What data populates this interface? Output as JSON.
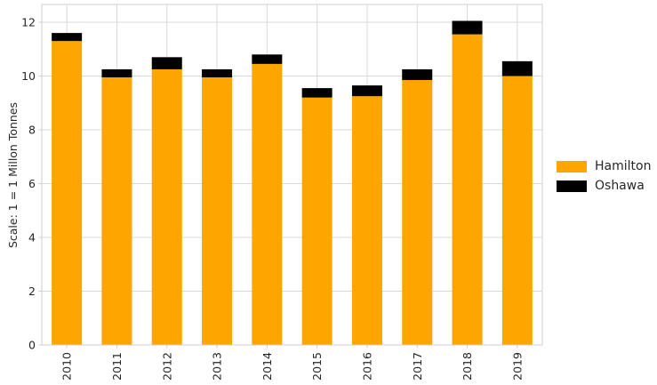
{
  "chart_data": {
    "type": "bar",
    "stacked": true,
    "title": "",
    "xlabel": "",
    "ylabel": "Scale: 1 = 1 Millon Tonnes",
    "categories": [
      "2010",
      "2011",
      "2012",
      "2013",
      "2014",
      "2015",
      "2016",
      "2017",
      "2018",
      "2019"
    ],
    "series": [
      {
        "name": "Hamilton",
        "color": "#FFA500",
        "values": [
          11.3,
          9.95,
          10.25,
          9.95,
          10.45,
          9.2,
          9.25,
          9.85,
          11.55,
          10.0
        ]
      },
      {
        "name": "Oshawa",
        "color": "#000000",
        "values": [
          0.3,
          0.3,
          0.45,
          0.3,
          0.35,
          0.35,
          0.4,
          0.4,
          0.5,
          0.55
        ]
      }
    ],
    "ylim": [
      0,
      12
    ],
    "yticks": [
      0,
      2,
      4,
      6,
      8,
      10,
      12
    ],
    "grid": true,
    "legend_position": "center-right"
  },
  "colors": {
    "hamilton": "#FFA500",
    "oshawa": "#000000",
    "grid_line": "#d9d9d9",
    "spine": "#cfcfcf",
    "text": "#262626",
    "background": "#ffffff"
  }
}
